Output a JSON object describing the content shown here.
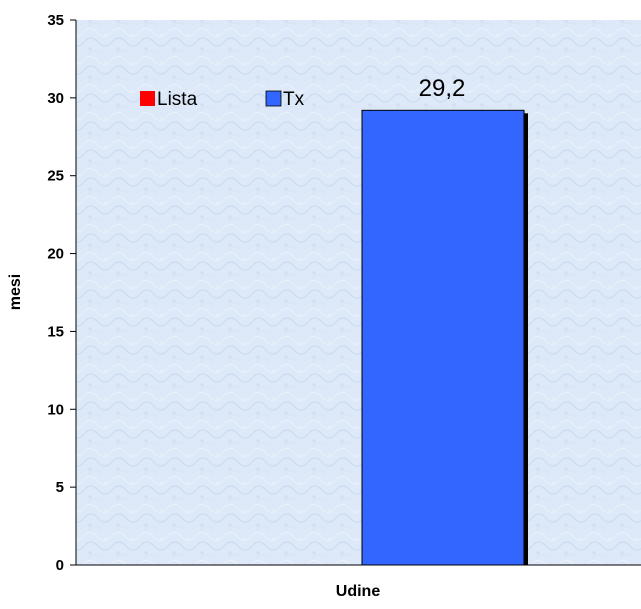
{
  "chart_data": {
    "type": "bar",
    "categories": [
      "Udine"
    ],
    "series": [
      {
        "name": "Lista",
        "color": "#ff0000",
        "values": [
          null
        ]
      },
      {
        "name": "Tx",
        "color": "#3366ff",
        "values": [
          29.2
        ]
      }
    ],
    "data_labels": [
      "29,2"
    ],
    "xlabel": "Udine",
    "ylabel": "mesi",
    "ylim": [
      0,
      35
    ],
    "yticks": [
      0,
      5,
      10,
      15,
      20,
      25,
      30,
      35
    ],
    "grid": false,
    "legend_position": "top-left inside",
    "background": "light blue textured",
    "plot_color": "#dfeaf8"
  }
}
